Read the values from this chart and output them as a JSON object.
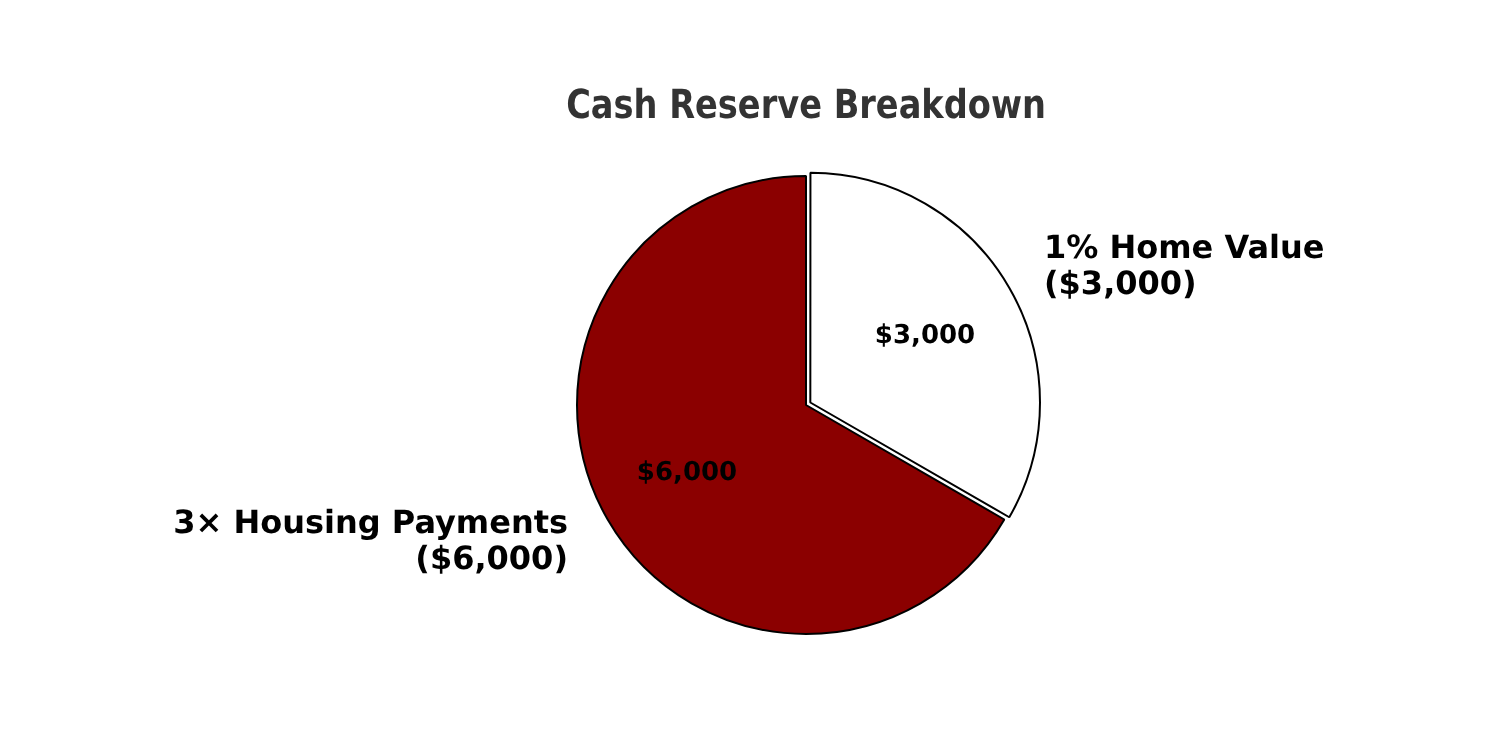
{
  "chart_data": {
    "type": "pie",
    "title": "Cash Reserve Breakdown",
    "categories": [
      "1% Home Value\n($3,000)",
      "3× Housing Payments\n($6,000)"
    ],
    "values": [
      3000,
      6000
    ],
    "colors": [
      "#ffffff",
      "#8b0000"
    ],
    "value_labels": [
      "$3,000",
      "$6,000"
    ],
    "legend": false
  }
}
